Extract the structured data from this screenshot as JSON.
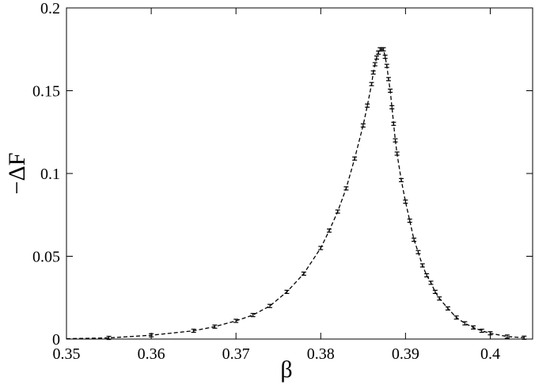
{
  "chart_data": {
    "type": "line",
    "xlabel": "β",
    "ylabel": "−ΔF",
    "xlim": [
      0.35,
      0.405
    ],
    "ylim": [
      0,
      0.2
    ],
    "xticks": [
      0.35,
      0.36,
      0.37,
      0.38,
      0.39,
      0.4
    ],
    "xtick_labels": [
      "0.35",
      "0.36",
      "0.37",
      "0.38",
      "0.39",
      "0.4"
    ],
    "yticks": [
      0,
      0.05,
      0.1,
      0.15,
      0.2
    ],
    "ytick_labels": [
      "0",
      "0.05",
      "0.1",
      "0.15",
      "0.2"
    ],
    "grid": false,
    "series": [
      {
        "line_style": "dashed",
        "marker": "error-bar",
        "color": "#000000",
        "x": [
          0.35,
          0.355,
          0.36,
          0.365,
          0.3675,
          0.37,
          0.372,
          0.374,
          0.376,
          0.378,
          0.38,
          0.381,
          0.382,
          0.383,
          0.384,
          0.385,
          0.3855,
          0.386,
          0.3862,
          0.3864,
          0.3866,
          0.3868,
          0.387,
          0.3872,
          0.3874,
          0.3876,
          0.3878,
          0.388,
          0.3882,
          0.3884,
          0.3886,
          0.3888,
          0.389,
          0.3895,
          0.39,
          0.3905,
          0.391,
          0.3915,
          0.392,
          0.3925,
          0.393,
          0.3935,
          0.394,
          0.395,
          0.396,
          0.397,
          0.398,
          0.399,
          0.4,
          0.402,
          0.404
        ],
        "y": [
          0.0002,
          0.0007,
          0.0023,
          0.005,
          0.0075,
          0.011,
          0.0145,
          0.02,
          0.0285,
          0.0395,
          0.055,
          0.0655,
          0.077,
          0.091,
          0.109,
          0.129,
          0.141,
          0.154,
          0.161,
          0.166,
          0.17,
          0.173,
          0.175,
          0.175,
          0.175,
          0.1705,
          0.165,
          0.157,
          0.15,
          0.14,
          0.13,
          0.12,
          0.112,
          0.096,
          0.083,
          0.0715,
          0.06,
          0.0525,
          0.0445,
          0.0385,
          0.034,
          0.0285,
          0.0245,
          0.0185,
          0.013,
          0.0095,
          0.007,
          0.005,
          0.0035,
          0.0015,
          0.0008
        ]
      }
    ]
  }
}
